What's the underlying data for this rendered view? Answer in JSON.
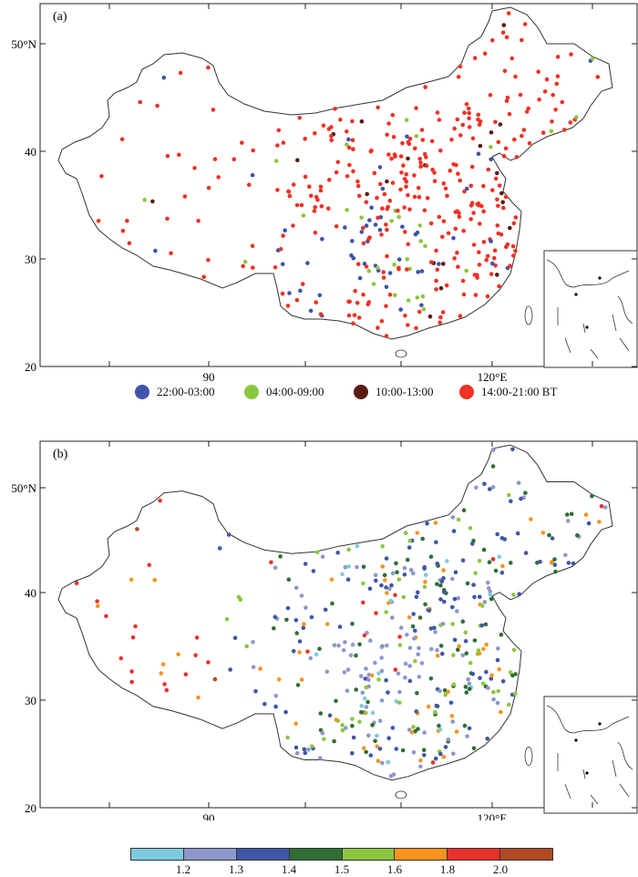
{
  "panels": [
    {
      "label": "(a)",
      "x_ticks": [
        {
          "value": 90,
          "text": "90"
        },
        {
          "value": 120,
          "text": "120°E"
        }
      ],
      "y_ticks": [
        {
          "value": 50,
          "text": "50°N"
        },
        {
          "value": 40,
          "text": "40"
        },
        {
          "value": 30,
          "text": "30"
        },
        {
          "value": 20,
          "text": "20"
        }
      ]
    },
    {
      "label": "(b)",
      "x_ticks": [
        {
          "value": 90,
          "text": "90"
        },
        {
          "value": 120,
          "text": "120°E"
        }
      ],
      "y_ticks": [
        {
          "value": 50,
          "text": "50°N"
        },
        {
          "value": 40,
          "text": "40"
        },
        {
          "value": 30,
          "text": "30"
        },
        {
          "value": 20,
          "text": "20"
        }
      ]
    }
  ],
  "legend_a": {
    "items": [
      {
        "label": "22:00-03:00",
        "color": "#3f54a8"
      },
      {
        "label": "04:00-09:00",
        "color": "#8cc63f"
      },
      {
        "label": "10:00-13:00",
        "color": "#5a1a12"
      },
      {
        "label": "14:00-21:00 BT",
        "color": "#ee3124"
      }
    ]
  },
  "colorbar_b": {
    "colors": [
      "#7ecbe0",
      "#8c98cc",
      "#3f56a6",
      "#2f6e35",
      "#8cc63f",
      "#f7931e",
      "#e8312b",
      "#b04a22"
    ],
    "labels": [
      "1.2",
      "1.3",
      "1.4",
      "1.5",
      "1.6",
      "1.8",
      "2.0"
    ]
  },
  "chart_data": {
    "type": "scatter",
    "lon_range": [
      73,
      136
    ],
    "lat_range": [
      20,
      54
    ],
    "description_note": ""
  }
}
